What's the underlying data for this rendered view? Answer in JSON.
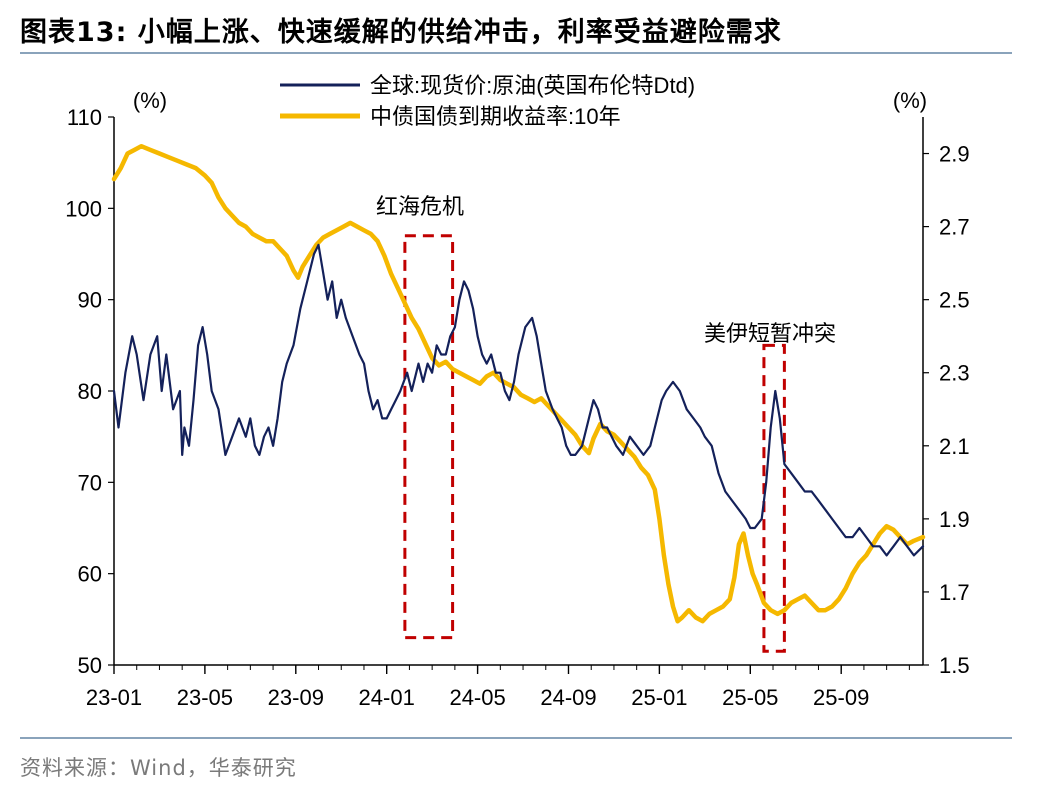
{
  "header": {
    "title": "图表13:  小幅上涨、快速缓解的供给冲击，利率受益避险需求"
  },
  "footer": {
    "source": "资料来源：Wind，华泰研究"
  },
  "chart_data": {
    "type": "line",
    "title": "图表13:  小幅上涨、快速缓解的供给冲击，利率受益避险需求",
    "x_ticks": [
      "23-01",
      "23-05",
      "23-09",
      "24-01",
      "24-05",
      "24-09",
      "25-01",
      "25-05",
      "25-09"
    ],
    "x_tick_months": [
      0,
      4,
      8,
      12,
      16,
      20,
      24,
      28,
      32
    ],
    "x_range_months": [
      0,
      35.6
    ],
    "y_left": {
      "label": "(%)",
      "range": [
        50,
        110
      ],
      "ticks": [
        50,
        60,
        70,
        80,
        90,
        100,
        110
      ]
    },
    "y_right": {
      "label": "(%)",
      "range": [
        1.5,
        3.0
      ],
      "ticks": [
        1.5,
        1.7,
        1.9,
        2.1,
        2.3,
        2.5,
        2.7,
        2.9
      ],
      "tick_labels": [
        "1.5",
        "1.7",
        "1.9",
        "2.1",
        "2.3",
        "2.5",
        "2.7",
        "2.9"
      ]
    },
    "series": [
      {
        "name": "全球:现货价:原油(英国布伦特Dtd)",
        "axis": "left",
        "color": "#14215a",
        "points": [
          [
            0,
            80
          ],
          [
            0.2,
            76
          ],
          [
            0.5,
            82
          ],
          [
            0.8,
            86
          ],
          [
            1.0,
            84
          ],
          [
            1.3,
            79
          ],
          [
            1.6,
            84
          ],
          [
            1.9,
            86
          ],
          [
            2.1,
            80
          ],
          [
            2.3,
            84
          ],
          [
            2.6,
            78
          ],
          [
            2.9,
            80
          ],
          [
            3.0,
            73
          ],
          [
            3.1,
            76
          ],
          [
            3.3,
            74
          ],
          [
            3.5,
            79
          ],
          [
            3.7,
            85
          ],
          [
            3.9,
            87
          ],
          [
            4.1,
            84
          ],
          [
            4.3,
            80
          ],
          [
            4.6,
            78
          ],
          [
            4.9,
            73
          ],
          [
            5.2,
            75
          ],
          [
            5.5,
            77
          ],
          [
            5.8,
            75
          ],
          [
            6.0,
            77
          ],
          [
            6.2,
            74
          ],
          [
            6.4,
            73
          ],
          [
            6.6,
            75
          ],
          [
            6.8,
            76
          ],
          [
            7.0,
            74
          ],
          [
            7.2,
            77
          ],
          [
            7.4,
            81
          ],
          [
            7.6,
            83
          ],
          [
            7.9,
            85
          ],
          [
            8.2,
            89
          ],
          [
            8.5,
            92
          ],
          [
            8.8,
            95
          ],
          [
            9.0,
            96
          ],
          [
            9.2,
            93
          ],
          [
            9.4,
            90
          ],
          [
            9.6,
            92
          ],
          [
            9.8,
            88
          ],
          [
            10.0,
            90
          ],
          [
            10.2,
            88
          ],
          [
            10.5,
            86
          ],
          [
            10.8,
            84
          ],
          [
            11.0,
            83
          ],
          [
            11.2,
            80
          ],
          [
            11.4,
            78
          ],
          [
            11.6,
            79
          ],
          [
            11.8,
            77
          ],
          [
            12.0,
            77
          ],
          [
            12.2,
            78
          ],
          [
            12.4,
            79
          ],
          [
            12.6,
            80
          ],
          [
            12.9,
            82
          ],
          [
            13.1,
            80
          ],
          [
            13.4,
            83
          ],
          [
            13.6,
            81
          ],
          [
            13.8,
            83
          ],
          [
            14.0,
            82
          ],
          [
            14.2,
            85
          ],
          [
            14.4,
            84
          ],
          [
            14.6,
            84
          ],
          [
            14.8,
            86
          ],
          [
            15.0,
            87
          ],
          [
            15.2,
            90
          ],
          [
            15.4,
            92
          ],
          [
            15.6,
            91
          ],
          [
            15.8,
            89
          ],
          [
            16.0,
            86
          ],
          [
            16.2,
            84
          ],
          [
            16.4,
            83
          ],
          [
            16.6,
            84
          ],
          [
            16.8,
            82
          ],
          [
            17.0,
            82
          ],
          [
            17.2,
            80
          ],
          [
            17.4,
            79
          ],
          [
            17.6,
            81
          ],
          [
            17.8,
            84
          ],
          [
            18.1,
            87
          ],
          [
            18.4,
            88
          ],
          [
            18.6,
            86
          ],
          [
            18.8,
            83
          ],
          [
            19.0,
            80
          ],
          [
            19.3,
            78
          ],
          [
            19.5,
            77
          ],
          [
            19.7,
            76
          ],
          [
            19.9,
            74
          ],
          [
            20.1,
            73
          ],
          [
            20.3,
            73
          ],
          [
            20.6,
            74
          ],
          [
            20.9,
            77
          ],
          [
            21.1,
            79
          ],
          [
            21.3,
            78
          ],
          [
            21.5,
            76
          ],
          [
            21.7,
            76
          ],
          [
            21.9,
            75
          ],
          [
            22.1,
            74
          ],
          [
            22.4,
            73
          ],
          [
            22.7,
            75
          ],
          [
            23.0,
            74
          ],
          [
            23.3,
            73
          ],
          [
            23.6,
            74
          ],
          [
            23.9,
            77
          ],
          [
            24.1,
            79
          ],
          [
            24.3,
            80
          ],
          [
            24.6,
            81
          ],
          [
            24.9,
            80
          ],
          [
            25.2,
            78
          ],
          [
            25.5,
            77
          ],
          [
            25.8,
            76
          ],
          [
            26.0,
            75
          ],
          [
            26.3,
            74
          ],
          [
            26.6,
            71
          ],
          [
            26.9,
            69
          ],
          [
            27.2,
            68
          ],
          [
            27.5,
            67
          ],
          [
            27.8,
            66
          ],
          [
            28.0,
            65
          ],
          [
            28.2,
            65
          ],
          [
            28.5,
            66
          ],
          [
            28.7,
            70
          ],
          [
            28.9,
            76
          ],
          [
            29.1,
            80
          ],
          [
            29.3,
            77
          ],
          [
            29.5,
            72
          ],
          [
            29.8,
            71
          ],
          [
            30.1,
            70
          ],
          [
            30.4,
            69
          ],
          [
            30.7,
            69
          ],
          [
            31.0,
            68
          ],
          [
            31.3,
            67
          ],
          [
            31.6,
            66
          ],
          [
            31.9,
            65
          ],
          [
            32.2,
            64
          ],
          [
            32.5,
            64
          ],
          [
            32.8,
            65
          ],
          [
            33.1,
            64
          ],
          [
            33.4,
            63
          ],
          [
            33.7,
            63
          ],
          [
            34.0,
            62
          ],
          [
            34.3,
            63
          ],
          [
            34.6,
            64
          ],
          [
            34.9,
            63
          ],
          [
            35.2,
            62
          ],
          [
            35.6,
            63
          ]
        ]
      },
      {
        "name": "中债国债到期收益率:10年",
        "axis": "right",
        "color": "#f5b800",
        "points": [
          [
            0,
            2.83
          ],
          [
            0.3,
            2.86
          ],
          [
            0.6,
            2.9
          ],
          [
            0.9,
            2.91
          ],
          [
            1.2,
            2.92
          ],
          [
            1.6,
            2.91
          ],
          [
            2.0,
            2.9
          ],
          [
            2.4,
            2.89
          ],
          [
            2.8,
            2.88
          ],
          [
            3.2,
            2.87
          ],
          [
            3.6,
            2.86
          ],
          [
            4.0,
            2.84
          ],
          [
            4.3,
            2.82
          ],
          [
            4.6,
            2.78
          ],
          [
            4.9,
            2.75
          ],
          [
            5.2,
            2.73
          ],
          [
            5.5,
            2.71
          ],
          [
            5.8,
            2.7
          ],
          [
            6.1,
            2.68
          ],
          [
            6.4,
            2.67
          ],
          [
            6.7,
            2.66
          ],
          [
            7.0,
            2.66
          ],
          [
            7.3,
            2.64
          ],
          [
            7.6,
            2.62
          ],
          [
            7.9,
            2.58
          ],
          [
            8.1,
            2.56
          ],
          [
            8.3,
            2.59
          ],
          [
            8.6,
            2.62
          ],
          [
            8.9,
            2.65
          ],
          [
            9.2,
            2.67
          ],
          [
            9.5,
            2.68
          ],
          [
            9.8,
            2.69
          ],
          [
            10.1,
            2.7
          ],
          [
            10.4,
            2.71
          ],
          [
            10.7,
            2.7
          ],
          [
            11.0,
            2.69
          ],
          [
            11.3,
            2.68
          ],
          [
            11.6,
            2.66
          ],
          [
            11.9,
            2.62
          ],
          [
            12.2,
            2.57
          ],
          [
            12.5,
            2.53
          ],
          [
            12.8,
            2.49
          ],
          [
            13.1,
            2.45
          ],
          [
            13.4,
            2.42
          ],
          [
            13.7,
            2.38
          ],
          [
            14.0,
            2.34
          ],
          [
            14.3,
            2.32
          ],
          [
            14.6,
            2.33
          ],
          [
            14.9,
            2.31
          ],
          [
            15.2,
            2.3
          ],
          [
            15.5,
            2.29
          ],
          [
            15.8,
            2.28
          ],
          [
            16.1,
            2.27
          ],
          [
            16.4,
            2.29
          ],
          [
            16.7,
            2.3
          ],
          [
            17.0,
            2.28
          ],
          [
            17.3,
            2.27
          ],
          [
            17.6,
            2.26
          ],
          [
            17.9,
            2.24
          ],
          [
            18.2,
            2.23
          ],
          [
            18.5,
            2.22
          ],
          [
            18.8,
            2.23
          ],
          [
            19.1,
            2.21
          ],
          [
            19.4,
            2.19
          ],
          [
            19.7,
            2.17
          ],
          [
            20.0,
            2.15
          ],
          [
            20.3,
            2.13
          ],
          [
            20.6,
            2.1
          ],
          [
            20.9,
            2.08
          ],
          [
            21.1,
            2.12
          ],
          [
            21.4,
            2.16
          ],
          [
            21.7,
            2.14
          ],
          [
            22.0,
            2.13
          ],
          [
            22.3,
            2.11
          ],
          [
            22.6,
            2.09
          ],
          [
            22.9,
            2.07
          ],
          [
            23.2,
            2.04
          ],
          [
            23.5,
            2.02
          ],
          [
            23.8,
            1.98
          ],
          [
            24.0,
            1.9
          ],
          [
            24.2,
            1.8
          ],
          [
            24.4,
            1.72
          ],
          [
            24.6,
            1.66
          ],
          [
            24.8,
            1.62
          ],
          [
            25.0,
            1.63
          ],
          [
            25.3,
            1.65
          ],
          [
            25.6,
            1.63
          ],
          [
            25.9,
            1.62
          ],
          [
            26.2,
            1.64
          ],
          [
            26.5,
            1.65
          ],
          [
            26.8,
            1.66
          ],
          [
            27.1,
            1.68
          ],
          [
            27.3,
            1.74
          ],
          [
            27.5,
            1.83
          ],
          [
            27.7,
            1.86
          ],
          [
            27.9,
            1.8
          ],
          [
            28.1,
            1.75
          ],
          [
            28.3,
            1.72
          ],
          [
            28.6,
            1.67
          ],
          [
            28.9,
            1.65
          ],
          [
            29.2,
            1.64
          ],
          [
            29.5,
            1.65
          ],
          [
            29.8,
            1.67
          ],
          [
            30.1,
            1.68
          ],
          [
            30.4,
            1.69
          ],
          [
            30.7,
            1.67
          ],
          [
            31.0,
            1.65
          ],
          [
            31.3,
            1.65
          ],
          [
            31.6,
            1.66
          ],
          [
            31.9,
            1.68
          ],
          [
            32.2,
            1.71
          ],
          [
            32.5,
            1.75
          ],
          [
            32.8,
            1.78
          ],
          [
            33.1,
            1.8
          ],
          [
            33.4,
            1.83
          ],
          [
            33.7,
            1.86
          ],
          [
            34.0,
            1.88
          ],
          [
            34.3,
            1.87
          ],
          [
            34.6,
            1.85
          ],
          [
            34.9,
            1.83
          ],
          [
            35.2,
            1.84
          ],
          [
            35.6,
            1.85
          ]
        ]
      }
    ],
    "annotations": [
      {
        "text": "红海危机",
        "x_range_months": [
          12.8,
          14.9
        ],
        "y_range_left": [
          53,
          97
        ]
      },
      {
        "text": "美伊短暂冲突",
        "x_range_months": [
          28.6,
          29.5
        ],
        "y_range_left": [
          51.5,
          85
        ]
      }
    ]
  }
}
